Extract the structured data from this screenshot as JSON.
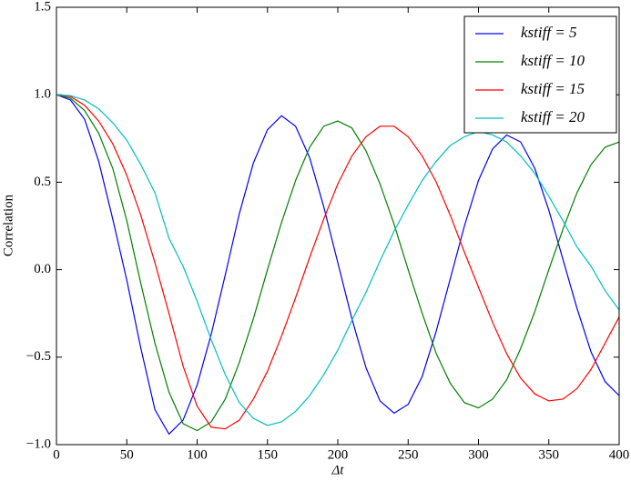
{
  "chart_data": {
    "type": "line",
    "x_label": "Δt",
    "y_label": "Correlation",
    "x": [
      0,
      10,
      20,
      30,
      40,
      50,
      60,
      70,
      80,
      90,
      100,
      110,
      120,
      130,
      140,
      150,
      160,
      170,
      180,
      190,
      200,
      210,
      220,
      230,
      240,
      250,
      260,
      270,
      280,
      290,
      300,
      310,
      320,
      330,
      340,
      350,
      360,
      370,
      380,
      390,
      400
    ],
    "series": [
      {
        "name": "kstiff = 5",
        "color": "#0000ff",
        "values": [
          1.0,
          0.97,
          0.86,
          0.62,
          0.29,
          -0.06,
          -0.45,
          -0.8,
          -0.94,
          -0.86,
          -0.66,
          -0.37,
          -0.03,
          0.32,
          0.61,
          0.8,
          0.88,
          0.82,
          0.64,
          0.36,
          0.04,
          -0.28,
          -0.56,
          -0.75,
          -0.82,
          -0.77,
          -0.61,
          -0.35,
          -0.05,
          0.25,
          0.51,
          0.69,
          0.77,
          0.73,
          0.58,
          0.34,
          0.06,
          -0.22,
          -0.47,
          -0.64,
          -0.72
        ]
      },
      {
        "name": "kstiff = 10",
        "color": "#008000",
        "values": [
          1.0,
          0.98,
          0.91,
          0.78,
          0.58,
          0.28,
          -0.08,
          -0.42,
          -0.7,
          -0.88,
          -0.92,
          -0.87,
          -0.74,
          -0.53,
          -0.28,
          0.0,
          0.27,
          0.51,
          0.7,
          0.82,
          0.85,
          0.81,
          0.68,
          0.49,
          0.26,
          0.0,
          -0.25,
          -0.48,
          -0.65,
          -0.76,
          -0.79,
          -0.74,
          -0.63,
          -0.45,
          -0.24,
          0.0,
          0.23,
          0.44,
          0.6,
          0.7,
          0.73
        ]
      },
      {
        "name": "kstiff = 15",
        "color": "#ff0000",
        "values": [
          1.0,
          0.99,
          0.94,
          0.85,
          0.72,
          0.54,
          0.31,
          0.04,
          -0.25,
          -0.55,
          -0.78,
          -0.9,
          -0.91,
          -0.86,
          -0.74,
          -0.58,
          -0.38,
          -0.16,
          0.07,
          0.29,
          0.49,
          0.65,
          0.76,
          0.82,
          0.82,
          0.76,
          0.65,
          0.5,
          0.31,
          0.1,
          -0.1,
          -0.3,
          -0.48,
          -0.62,
          -0.71,
          -0.75,
          -0.74,
          -0.68,
          -0.57,
          -0.42,
          -0.27
        ]
      },
      {
        "name": "kstiff = 20",
        "color": "#00bfbf",
        "values": [
          1.0,
          0.995,
          0.97,
          0.92,
          0.84,
          0.74,
          0.6,
          0.44,
          0.18,
          0.02,
          -0.18,
          -0.4,
          -0.6,
          -0.76,
          -0.85,
          -0.89,
          -0.87,
          -0.81,
          -0.72,
          -0.6,
          -0.46,
          -0.29,
          -0.13,
          0.05,
          0.22,
          0.37,
          0.51,
          0.62,
          0.71,
          0.76,
          0.79,
          0.77,
          0.73,
          0.65,
          0.55,
          0.42,
          0.28,
          0.13,
          0.02,
          -0.12,
          -0.23
        ]
      }
    ],
    "xlim": [
      0,
      400
    ],
    "ylim": [
      -1,
      1.5
    ],
    "xticks": [
      0,
      50,
      100,
      150,
      200,
      250,
      300,
      350,
      400
    ],
    "yticks": [
      {
        "value": -1,
        "label": "−1.0"
      },
      {
        "value": -0.5,
        "label": "−0.5"
      },
      {
        "value": 0,
        "label": "0.0"
      },
      {
        "value": 0.5,
        "label": "0.5"
      },
      {
        "value": 1,
        "label": "1.0"
      },
      {
        "value": 1.5,
        "label": "1.5"
      }
    ],
    "legend": "upper right",
    "grid": false
  }
}
